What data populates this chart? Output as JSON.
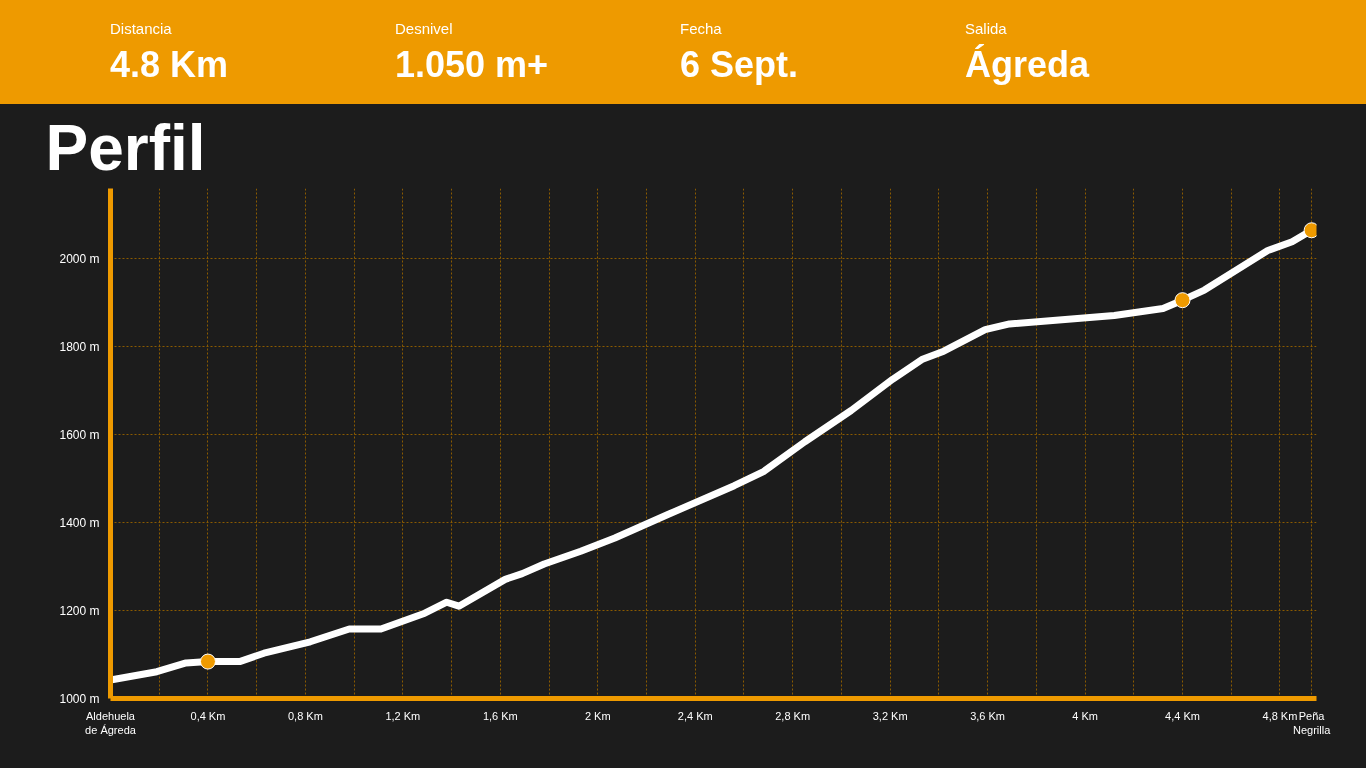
{
  "chart_data": {
    "type": "line",
    "title": "Perfil",
    "annotations": [
      "Distancia",
      "4.8 Km",
      "Desnivel",
      "1.050 m+",
      "Fecha",
      "6 Sept.",
      "Salida",
      "Ágreda"
    ],
    "xlim": [
      0,
      4.95
    ],
    "ylim": [
      1000,
      2160
    ],
    "xticks": [
      {
        "value": 0,
        "label": "Aldehuela\nde Ágreda"
      },
      {
        "value": 0.2,
        "label": null
      },
      {
        "value": 0.4,
        "label": "0,4 Km"
      },
      {
        "value": 0.6,
        "label": null
      },
      {
        "value": 0.8,
        "label": "0,8 Km"
      },
      {
        "value": 1.0,
        "label": null
      },
      {
        "value": 1.2,
        "label": "1,2 Km"
      },
      {
        "value": 1.4,
        "label": null
      },
      {
        "value": 1.6,
        "label": "1,6 Km"
      },
      {
        "value": 1.8,
        "label": null
      },
      {
        "value": 2.0,
        "label": "2 Km"
      },
      {
        "value": 2.2,
        "label": null
      },
      {
        "value": 2.4,
        "label": "2,4 Km"
      },
      {
        "value": 2.6,
        "label": null
      },
      {
        "value": 2.8,
        "label": "2,8 Km"
      },
      {
        "value": 3.0,
        "label": null
      },
      {
        "value": 3.2,
        "label": "3,2 Km"
      },
      {
        "value": 3.4,
        "label": null
      },
      {
        "value": 3.6,
        "label": "3,6 Km"
      },
      {
        "value": 3.8,
        "label": null
      },
      {
        "value": 4.0,
        "label": "4 Km"
      },
      {
        "value": 4.2,
        "label": null
      },
      {
        "value": 4.4,
        "label": "4,4 Km"
      },
      {
        "value": 4.6,
        "label": null
      },
      {
        "value": 4.8,
        "label": "4,8 Km"
      },
      {
        "value": 4.93,
        "label": "Peña\nNegrilla"
      }
    ],
    "yticks": [
      {
        "value": 1000,
        "label": "1000 m"
      },
      {
        "value": 1200,
        "label": "1200 m"
      },
      {
        "value": 1400,
        "label": "1400 m"
      },
      {
        "value": 1600,
        "label": "1600 m"
      },
      {
        "value": 1800,
        "label": "1800 m"
      },
      {
        "value": 2000,
        "label": "2000 m"
      }
    ],
    "grid": true,
    "line_style": "solid",
    "series": [
      {
        "type": "line",
        "color": "#ffffff",
        "marker": "none",
        "x": [
          0,
          0.19,
          0.31,
          0.4,
          0.53,
          0.63,
          0.82,
          0.98,
          1.11,
          1.29,
          1.38,
          1.43,
          1.62,
          1.69,
          1.78,
          1.93,
          2.07,
          2.29,
          2.56,
          2.68,
          2.85,
          3.04,
          3.21,
          3.33,
          3.42,
          3.59,
          3.69,
          4.12,
          4.32,
          4.4,
          4.49,
          4.75,
          4.85,
          4.93
        ],
        "values": [
          1042,
          1061,
          1081,
          1084,
          1084,
          1103,
          1129,
          1158,
          1158,
          1194,
          1219,
          1210,
          1271,
          1284,
          1306,
          1335,
          1365,
          1419,
          1484,
          1516,
          1584,
          1655,
          1726,
          1771,
          1790,
          1839,
          1852,
          1871,
          1887,
          1906,
          1929,
          2019,
          2039,
          2065
        ]
      },
      {
        "type": "scatter",
        "color": "#ee9a00",
        "marker": "circle",
        "x": [
          0.4,
          4.4,
          4.93
        ],
        "values": [
          1084,
          1906,
          2065
        ]
      }
    ]
  }
}
